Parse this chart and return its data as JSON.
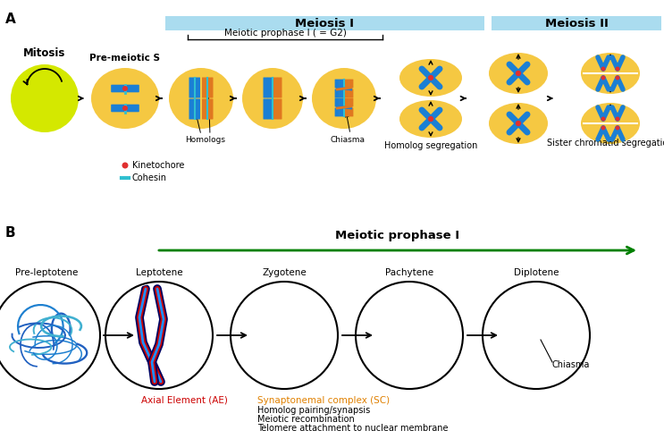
{
  "bg_color": "#ffffff",
  "yellow_cell": "#d4e800",
  "orange_cell": "#f5c842",
  "light_blue_header": "#aadcef",
  "blue_chrom": "#1b7fd4",
  "dark_blue_chrom": "#1560a8",
  "orange_chrom": "#e07820",
  "red_kinet": "#e03030",
  "cyan_cohesin": "#30c0d0",
  "panel_a_label": "A",
  "panel_b_label": "B",
  "meiosis_I_label": "Meiosis I",
  "meiosis_II_label": "Meiosis II",
  "prophase_label": "Meiotic prophase I ( = G2)",
  "mitosis_label": "Mitosis",
  "premeiotic_label": "Pre-meiotic S",
  "homolog_seg_label": "Homolog segregation",
  "sister_seg_label": "Sister chromatid segregation",
  "kinetochore_label": "Kinetochore",
  "cohesin_label": "Cohesin",
  "homologs_label": "Homologs",
  "chiasma_a_label": "Chiasma",
  "meiotic_prophase_label": "Meiotic prophase I",
  "pre_leptotene_label": "Pre-leptotene",
  "leptotene_label": "Leptotene",
  "zygotene_label": "Zygotene",
  "pachytene_label": "Pachytene",
  "diplotene_label": "Diplotene",
  "axial_element_label": "Axial Element (AE)",
  "sc_label": "Synaptonemal complex (SC)",
  "homolog_pairing_label": "Homolog pairing/synapsis",
  "meiotic_recomb_label": "Meiotic recombination",
  "telomere_label": "Telomere attachment to nuclear membrane",
  "chiasma_b_label": "Chiasma",
  "green_arrow_color": "#008000",
  "red_ae_color": "#cc0000",
  "orange_sc_color": "#e08000",
  "dark_navy": "#000060",
  "fig_w": 7.43,
  "fig_h": 4.91,
  "fig_dpi": 100
}
